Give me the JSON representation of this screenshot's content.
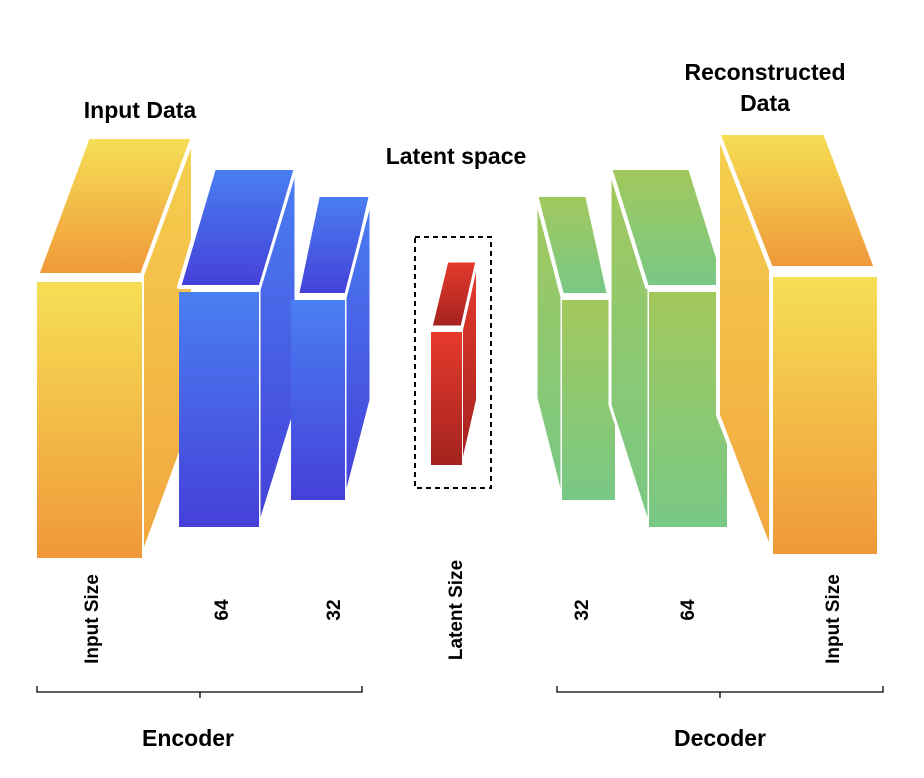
{
  "titles": {
    "input": "Input Data",
    "latent": "Latent space",
    "reconstructed_line1": "Reconstructed",
    "reconstructed_line2": "Data"
  },
  "layer_labels": {
    "input_size": "Input Size",
    "enc_64": "64",
    "enc_32": "32",
    "latent_size": "Latent Size",
    "dec_32": "32",
    "dec_64": "64",
    "output_size": "Input Size"
  },
  "groups": {
    "encoder": "Encoder",
    "decoder": "Decoder"
  },
  "colors": {
    "input_top": "#f5df55",
    "input_bottom": "#f0983a",
    "encoder_top": "#4a7ff2",
    "encoder_bottom": "#4540d8",
    "latent_top": "#e63a2c",
    "latent_bottom": "#a3231f",
    "decoder_top": "#a3c85c",
    "decoder_bottom": "#78c886"
  }
}
